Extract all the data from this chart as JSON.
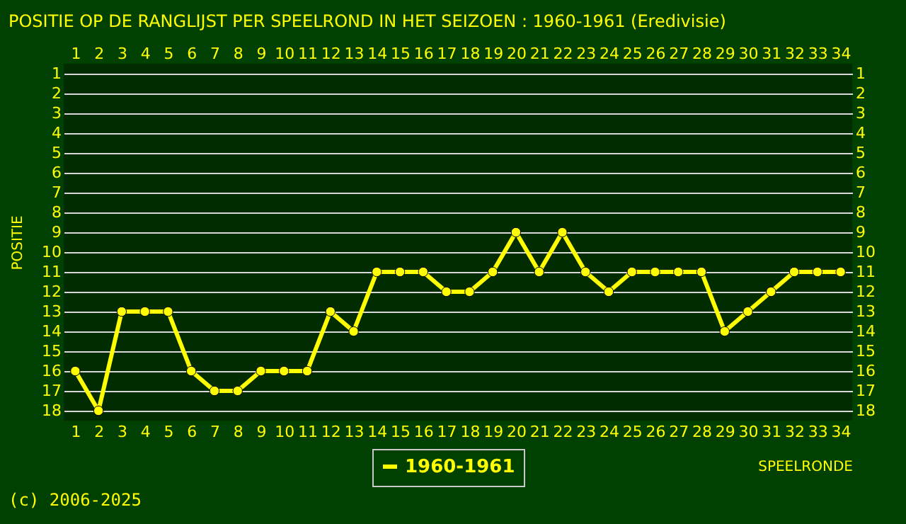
{
  "chart_data": {
    "type": "line",
    "title": "POSITIE OP DE RANGLIJST PER  SPEELROND IN HET SEIZOEN : 1960-1961 (Eredivisie)",
    "xlabel": "SPEELRONDE",
    "ylabel": "POSITIE",
    "annotations": [
      "(c) 2006-2025"
    ],
    "x": [
      1,
      2,
      3,
      4,
      5,
      6,
      7,
      8,
      9,
      10,
      11,
      12,
      13,
      14,
      15,
      16,
      17,
      18,
      19,
      20,
      21,
      22,
      23,
      24,
      25,
      26,
      27,
      28,
      29,
      30,
      31,
      32,
      33,
      34
    ],
    "series": [
      {
        "name": "1960-1961",
        "color": "#ffff00",
        "values": [
          16,
          18,
          13,
          13,
          13,
          16,
          17,
          17,
          16,
          16,
          16,
          13,
          14,
          11,
          11,
          11,
          12,
          12,
          11,
          9,
          11,
          9,
          11,
          12,
          11,
          11,
          11,
          11,
          14,
          13,
          12,
          11,
          11,
          11
        ]
      }
    ],
    "xlim": [
      0.5,
      34.5
    ],
    "xticks": [
      1,
      2,
      3,
      4,
      5,
      6,
      7,
      8,
      9,
      10,
      11,
      12,
      13,
      14,
      15,
      16,
      17,
      18,
      19,
      20,
      21,
      22,
      23,
      24,
      25,
      26,
      27,
      28,
      29,
      30,
      31,
      32,
      33,
      34
    ],
    "x2lim": [
      0.5,
      34.5
    ],
    "x2ticks": [
      1,
      2,
      3,
      4,
      5,
      6,
      7,
      8,
      9,
      10,
      11,
      12,
      13,
      14,
      15,
      16,
      17,
      18,
      19,
      20,
      21,
      22,
      23,
      24,
      25,
      26,
      27,
      28,
      29,
      30,
      31,
      32,
      33,
      34
    ],
    "ylim": [
      18.5,
      0.5
    ],
    "yticks": [
      1,
      2,
      3,
      4,
      5,
      6,
      7,
      8,
      9,
      10,
      11,
      12,
      13,
      14,
      15,
      16,
      17,
      18
    ],
    "y2lim": [
      18.5,
      0.5
    ],
    "y2ticks": [
      1,
      2,
      3,
      4,
      5,
      6,
      7,
      8,
      9,
      10,
      11,
      12,
      13,
      14,
      15,
      16,
      17,
      18
    ],
    "grid": "y",
    "legend": "bottom",
    "marker": "circle",
    "line_style": "solid"
  }
}
